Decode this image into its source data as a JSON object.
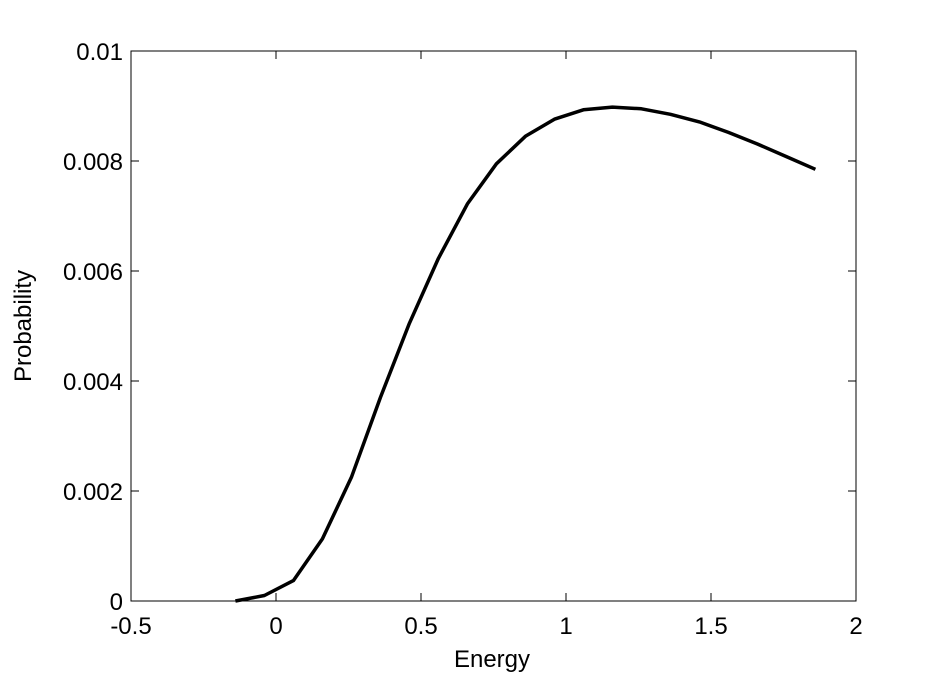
{
  "chart_data": {
    "type": "line",
    "xlabel": "Energy",
    "ylabel": "Probability",
    "xlim": [
      -0.5,
      2
    ],
    "ylim": [
      0,
      0.01
    ],
    "xticks": [
      -0.5,
      0,
      0.5,
      1,
      1.5,
      2
    ],
    "xtick_labels": [
      "-0.5",
      "0",
      "0.5",
      "1",
      "1.5",
      "2"
    ],
    "yticks": [
      0,
      0.002,
      0.004,
      0.006,
      0.008,
      0.01
    ],
    "ytick_labels": [
      "0",
      "0.002",
      "0.004",
      "0.006",
      "0.008",
      "0.01"
    ],
    "grid": false,
    "line_color": "#000000",
    "series": [
      {
        "x": [
          -0.14,
          -0.04,
          0.06,
          0.16,
          0.26,
          0.36,
          0.46,
          0.56,
          0.66,
          0.76,
          0.86,
          0.96,
          1.06,
          1.16,
          1.26,
          1.36,
          1.46,
          1.56,
          1.66,
          1.76,
          1.86
        ],
        "y": [
          0.0,
          0.0001,
          0.00037,
          0.00113,
          0.00225,
          0.0037,
          0.00505,
          0.00623,
          0.00722,
          0.00795,
          0.00845,
          0.00876,
          0.00893,
          0.00898,
          0.00895,
          0.00885,
          0.00871,
          0.00852,
          0.00831,
          0.00808,
          0.00785
        ]
      }
    ]
  }
}
